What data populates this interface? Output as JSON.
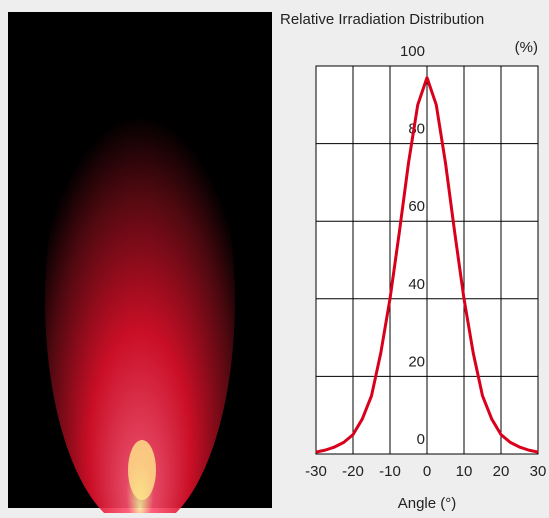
{
  "chart_data": {
    "type": "line",
    "title": "Relative Irradiation Distribution",
    "x_label": "Angle (°)",
    "y_label": "(%)",
    "x": [
      -30,
      -27.5,
      -25,
      -22.5,
      -20,
      -17.5,
      -15,
      -12.5,
      -10,
      -7.5,
      -5,
      -2.5,
      0,
      2.5,
      5,
      7.5,
      10,
      12.5,
      15,
      17.5,
      20,
      22.5,
      25,
      27.5,
      30
    ],
    "series": [
      {
        "color": "#d9001b",
        "values": [
          0.5,
          1,
          1.8,
          3,
          5,
          9,
          15,
          26,
          40,
          57,
          75,
          90,
          97,
          90,
          75,
          57,
          40,
          26,
          15,
          9,
          5,
          3,
          1.8,
          1,
          0.5
        ]
      }
    ],
    "xlim": [
      -30,
      30
    ],
    "xticks": [
      -30,
      -20,
      -10,
      0,
      10,
      20,
      30
    ],
    "ylim": [
      0,
      100
    ],
    "yticks": [
      0,
      20,
      40,
      60,
      80,
      100
    ],
    "grid": true
  }
}
